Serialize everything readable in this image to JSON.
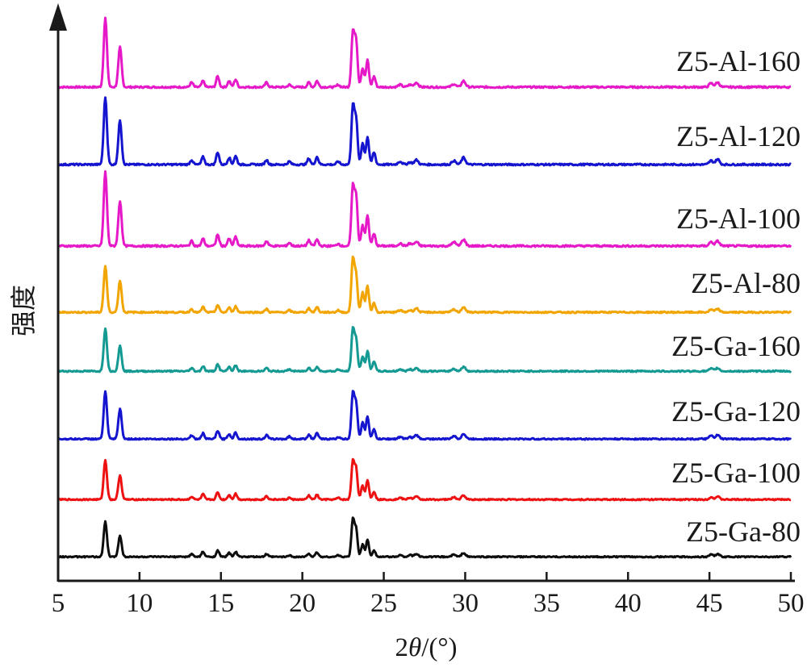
{
  "chart_data": {
    "type": "line",
    "xlabel_prefix": "2",
    "xlabel_symbol": "θ",
    "xlabel_unit": "/(°)",
    "ylabel": "强度",
    "xlim": [
      5,
      50
    ],
    "x_ticks": [
      5,
      10,
      15,
      20,
      25,
      30,
      35,
      40,
      45,
      50
    ],
    "y_ticks": "none",
    "stacked_offset": true,
    "grid": false,
    "legend": "labels at right end of each trace",
    "peaks_2theta": [
      7.9,
      8.8,
      13.2,
      13.9,
      14.8,
      15.5,
      15.9,
      17.8,
      19.2,
      20.4,
      20.9,
      22.2,
      23.1,
      23.3,
      23.7,
      24.0,
      24.4,
      26.0,
      26.6,
      27.0,
      29.3,
      29.9,
      45.1,
      45.5
    ],
    "series": [
      {
        "name": "Z5-Al-160",
        "color": "#e619c9",
        "peak_intensities": [
          90,
          52,
          6,
          8,
          14,
          8,
          10,
          6,
          3,
          6,
          8,
          3,
          70,
          60,
          25,
          35,
          14,
          3,
          3,
          6,
          4,
          8,
          5,
          6
        ]
      },
      {
        "name": "Z5-Al-120",
        "color": "#1515d0",
        "peak_intensities": [
          88,
          58,
          6,
          10,
          16,
          9,
          11,
          6,
          4,
          8,
          10,
          4,
          75,
          58,
          28,
          36,
          16,
          4,
          3,
          6,
          5,
          9,
          5,
          7
        ]
      },
      {
        "name": "Z5-Al-100",
        "color": "#e619c9",
        "peak_intensities": [
          92,
          56,
          6,
          9,
          14,
          9,
          11,
          6,
          4,
          7,
          8,
          3,
          72,
          60,
          26,
          38,
          15,
          3,
          3,
          5,
          5,
          8,
          5,
          6
        ]
      },
      {
        "name": "Z5-Al-80",
        "color": "#f2a500",
        "peak_intensities": [
          70,
          48,
          5,
          8,
          11,
          7,
          9,
          5,
          3,
          6,
          8,
          3,
          80,
          55,
          30,
          40,
          14,
          3,
          3,
          6,
          4,
          8,
          4,
          5
        ]
      },
      {
        "name": "Z5-Ga-160",
        "color": "#159a93",
        "peak_intensities": [
          68,
          40,
          5,
          8,
          11,
          7,
          9,
          5,
          3,
          6,
          7,
          3,
          65,
          50,
          24,
          32,
          16,
          3,
          3,
          5,
          4,
          7,
          4,
          5
        ]
      },
      {
        "name": "Z5-Ga-120",
        "color": "#1515d0",
        "peak_intensities": [
          75,
          48,
          6,
          9,
          13,
          8,
          10,
          6,
          4,
          7,
          9,
          3,
          72,
          56,
          26,
          36,
          15,
          3,
          3,
          6,
          5,
          8,
          5,
          6
        ]
      },
      {
        "name": "Z5-Ga-100",
        "color": "#ee1111",
        "peak_intensities": [
          68,
          42,
          5,
          9,
          12,
          8,
          10,
          6,
          3,
          7,
          8,
          3,
          65,
          52,
          24,
          34,
          14,
          3,
          3,
          5,
          4,
          7,
          4,
          5
        ]
      },
      {
        "name": "Z5-Ga-80",
        "color": "#0d0d0d",
        "peak_intensities": [
          62,
          38,
          5,
          9,
          11,
          7,
          9,
          5,
          3,
          6,
          8,
          3,
          65,
          48,
          22,
          30,
          12,
          3,
          3,
          5,
          4,
          7,
          4,
          5
        ]
      }
    ]
  }
}
